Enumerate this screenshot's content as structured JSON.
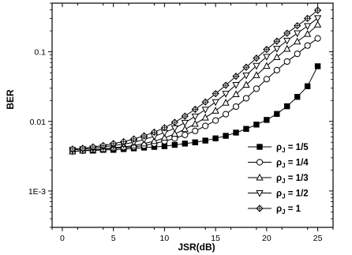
{
  "chart_data": {
    "type": "line",
    "title": "",
    "xlabel": "JSR(dB)",
    "ylabel": "BER",
    "yscale": "log",
    "xlim": [
      -1,
      26.5
    ],
    "ylim": [
      0.0003,
      0.5
    ],
    "x_ticks": [
      0,
      5,
      10,
      15,
      20,
      25
    ],
    "y_ticks": [
      {
        "value": 0.001,
        "label": "1E-3"
      },
      {
        "value": 0.01,
        "label": "0.01"
      },
      {
        "value": 0.1,
        "label": "0.1"
      }
    ],
    "grid": false,
    "legend_position": "bottom-right",
    "x": [
      1,
      2,
      3,
      4,
      5,
      6,
      7,
      8,
      9,
      10,
      11,
      12,
      13,
      14,
      15,
      16,
      17,
      18,
      19,
      20,
      21,
      22,
      23,
      24,
      25
    ],
    "series": [
      {
        "name": "ρJ = 1/5",
        "label_main": "ρ",
        "label_sub": "J",
        "label_rest": " = 1/5",
        "marker": "filled-square",
        "values": [
          0.0037,
          0.0038,
          0.0038,
          0.0039,
          0.0039,
          0.004,
          0.0041,
          0.0042,
          0.0043,
          0.0044,
          0.0046,
          0.0048,
          0.005,
          0.0053,
          0.0057,
          0.0062,
          0.0069,
          0.0078,
          0.009,
          0.0105,
          0.0128,
          0.0165,
          0.0225,
          0.032,
          0.062
        ]
      },
      {
        "name": "ρJ = 1/4",
        "label_main": "ρ",
        "label_sub": "J",
        "label_rest": " = 1/4",
        "marker": "open-circle",
        "values": [
          0.0037,
          0.0038,
          0.0039,
          0.004,
          0.0041,
          0.0042,
          0.0043,
          0.0045,
          0.0048,
          0.0052,
          0.0057,
          0.0064,
          0.0073,
          0.0086,
          0.0103,
          0.0127,
          0.0163,
          0.0215,
          0.0295,
          0.0405,
          0.0545,
          0.0725,
          0.0935,
          0.123,
          0.156
        ]
      },
      {
        "name": "ρJ = 1/3",
        "label_main": "ρ",
        "label_sub": "J",
        "label_rest": " = 1/3",
        "marker": "open-triangle-up",
        "values": [
          0.0037,
          0.0038,
          0.0039,
          0.004,
          0.0042,
          0.0043,
          0.0045,
          0.0048,
          0.0052,
          0.0058,
          0.0066,
          0.0077,
          0.0092,
          0.0113,
          0.0142,
          0.0185,
          0.0245,
          0.0335,
          0.046,
          0.0625,
          0.0835,
          0.11,
          0.14,
          0.18,
          0.245
        ]
      },
      {
        "name": "ρJ = 1/2",
        "label_main": "ρ",
        "label_sub": "J",
        "label_rest": " = 1/2",
        "marker": "open-triangle-down",
        "values": [
          0.0039,
          0.004,
          0.0041,
          0.0043,
          0.0045,
          0.0047,
          0.005,
          0.0055,
          0.0061,
          0.0069,
          0.008,
          0.0096,
          0.0118,
          0.0148,
          0.019,
          0.025,
          0.0335,
          0.046,
          0.063,
          0.085,
          0.111,
          0.145,
          0.185,
          0.235,
          0.305
        ]
      },
      {
        "name": "ρJ = 1",
        "label_main": "ρ",
        "label_sub": "J",
        "label_rest": " = 1",
        "marker": "crossed-diamond",
        "values": [
          0.004,
          0.0041,
          0.0043,
          0.0045,
          0.0048,
          0.0051,
          0.0056,
          0.0062,
          0.007,
          0.0081,
          0.0097,
          0.0119,
          0.0149,
          0.019,
          0.025,
          0.033,
          0.0445,
          0.06,
          0.081,
          0.108,
          0.142,
          0.185,
          0.237,
          0.302,
          0.395
        ]
      }
    ]
  }
}
